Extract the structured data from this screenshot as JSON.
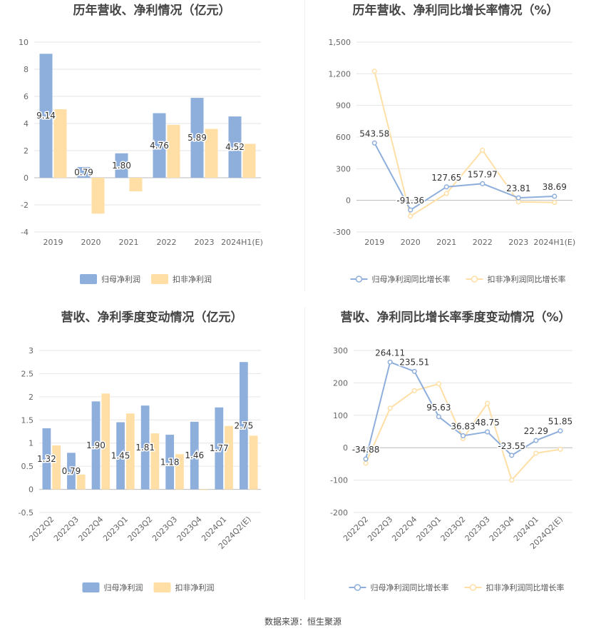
{
  "footer": "数据来源：恒生聚源",
  "colors": {
    "primary": "#8eaedb",
    "secondary": "#ffdfa6",
    "grid": "#e6e6e6",
    "axis": "#999999",
    "text": "#555555",
    "title": "#444444"
  },
  "chart_data": [
    {
      "type": "bar",
      "title": "历年营收、净利情况（亿元）",
      "categories": [
        "2019",
        "2020",
        "2021",
        "2022",
        "2023",
        "2024H1(E)"
      ],
      "ylim": [
        -4,
        10
      ],
      "yticks": [
        -4,
        -2,
        0,
        2,
        4,
        6,
        8,
        10
      ],
      "series": [
        {
          "name": "归母净利润",
          "values": [
            9.14,
            0.79,
            1.8,
            4.76,
            5.89,
            4.52
          ]
        },
        {
          "name": "扣非净利润",
          "values": [
            5.05,
            -2.65,
            -1.0,
            3.9,
            3.6,
            2.5
          ]
        }
      ],
      "data_labels": [
        "9.14",
        "0.79",
        "1.80",
        "4.76",
        "5.89",
        "4.52"
      ],
      "legend": "bottom"
    },
    {
      "type": "line",
      "title": "历年营收、净利同比增长率情况（%）",
      "categories": [
        "2019",
        "2020",
        "2021",
        "2022",
        "2023",
        "2024H1(E)"
      ],
      "ylim": [
        -300,
        1500
      ],
      "yticks": [
        -300,
        0,
        300,
        600,
        900,
        1200,
        1500
      ],
      "ytick_labels": [
        "-300",
        "0",
        "300",
        "600",
        "900",
        "1,200",
        "1,500"
      ],
      "series": [
        {
          "name": "归母净利润同比增长率",
          "values": [
            543.58,
            -91.36,
            127.65,
            157.97,
            23.81,
            38.69
          ]
        },
        {
          "name": "扣非净利润同比增长率",
          "values": [
            1225,
            -150,
            65,
            475,
            -15,
            -20
          ]
        }
      ],
      "data_labels": [
        "543.58",
        "-91.36",
        "127.65",
        "157.97",
        "23.81",
        "38.69"
      ],
      "legend": "bottom"
    },
    {
      "type": "bar",
      "title": "营收、净利季度变动情况（亿元）",
      "categories": [
        "2022Q2",
        "2022Q3",
        "2022Q4",
        "2023Q1",
        "2023Q2",
        "2023Q3",
        "2023Q4",
        "2024Q1",
        "2024Q2(E)"
      ],
      "ylim": [
        -0.5,
        3
      ],
      "yticks": [
        -0.5,
        0,
        0.5,
        1,
        1.5,
        2,
        2.5,
        3
      ],
      "ytick_labels": [
        "-0.5",
        "0",
        "0.5",
        "1",
        "1.5",
        "2",
        "2.5",
        "3"
      ],
      "series": [
        {
          "name": "归母净利润",
          "values": [
            1.32,
            0.79,
            1.9,
            1.45,
            1.81,
            1.18,
            1.46,
            1.77,
            2.75
          ]
        },
        {
          "name": "扣非净利润",
          "values": [
            0.95,
            0.32,
            2.07,
            1.64,
            1.21,
            0.76,
            -0.01,
            1.37,
            1.16
          ]
        }
      ],
      "data_labels": [
        "1.32",
        "0.79",
        "1.90",
        "1.45",
        "1.81",
        "1.18",
        "1.46",
        "1.77",
        "2.75"
      ],
      "legend": "bottom"
    },
    {
      "type": "line",
      "title": "营收、净利同比增长率季度变动情况（%）",
      "categories": [
        "2022Q2",
        "2022Q3",
        "2022Q4",
        "2023Q1",
        "2023Q2",
        "2023Q3",
        "2023Q4",
        "2024Q1",
        "2024Q2(E)"
      ],
      "ylim": [
        -200,
        300
      ],
      "yticks": [
        -200,
        -100,
        0,
        100,
        200,
        300
      ],
      "ytick_labels": [
        "-200",
        "-100",
        "0",
        "100",
        "200",
        "300"
      ],
      "series": [
        {
          "name": "归母净利润同比增长率",
          "values": [
            -34.88,
            264.11,
            235.51,
            95.63,
            36.83,
            48.75,
            -23.55,
            22.29,
            51.85
          ]
        },
        {
          "name": "扣非净利润同比增长率",
          "values": [
            -48,
            122,
            176,
            197,
            28,
            137,
            -100,
            -17,
            -5
          ]
        }
      ],
      "data_labels": [
        "-34.88",
        "264.11",
        "235.51",
        "95.63",
        "36.83",
        "48.75",
        "-23.55",
        "22.29",
        "51.85"
      ],
      "legend": "bottom"
    }
  ]
}
